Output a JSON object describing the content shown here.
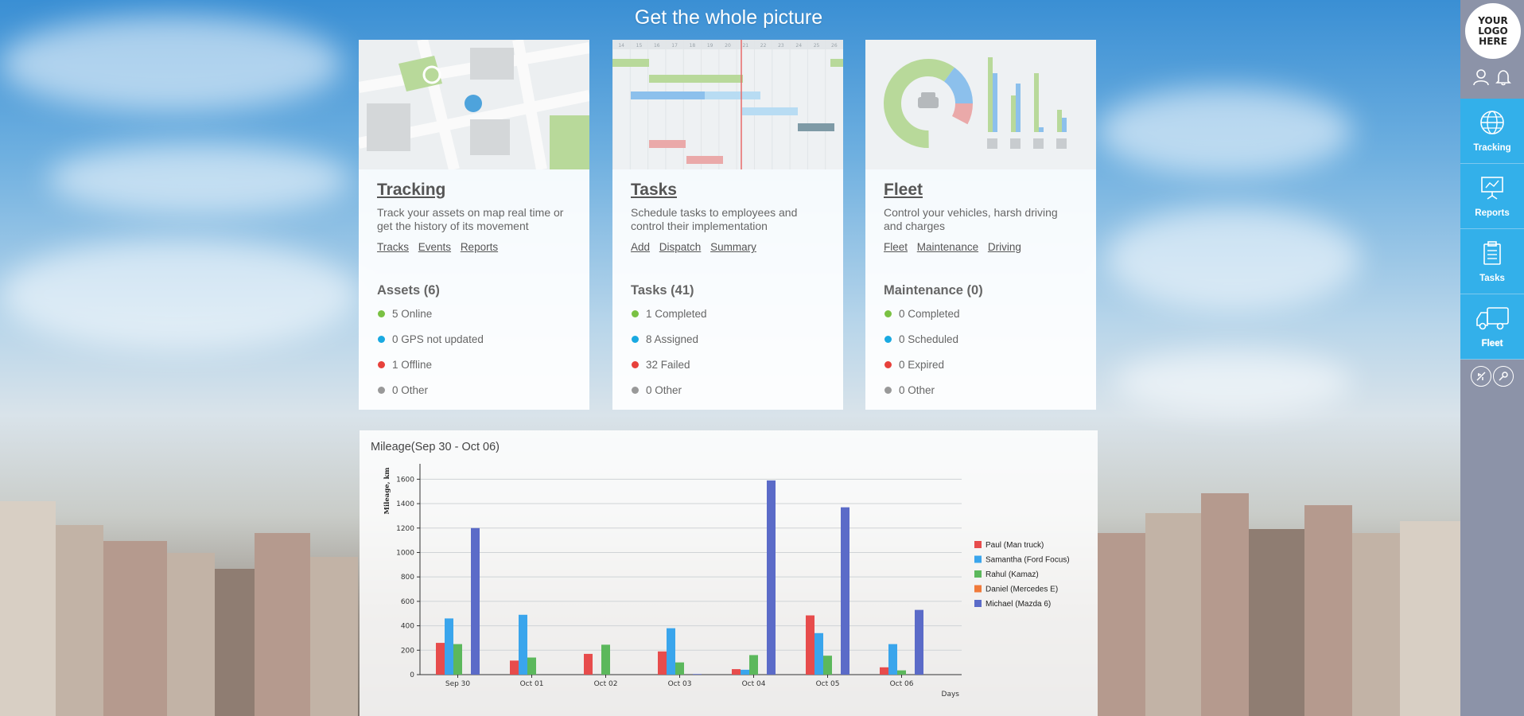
{
  "page_title": "Get the whole picture",
  "sidebar": {
    "logo_text": "YOUR LOGO HERE",
    "top_icons": [
      "user-icon",
      "bell-icon"
    ],
    "items": [
      {
        "label": "Tracking",
        "icon": "globe-icon"
      },
      {
        "label": "Reports",
        "icon": "presentation-icon"
      },
      {
        "label": "Tasks",
        "icon": "clipboard-icon"
      },
      {
        "label": "Fleet",
        "icon": "truck-icon"
      }
    ],
    "bottom_icons": [
      "plugin-icon",
      "key-icon"
    ]
  },
  "cards": [
    {
      "title": "Tracking",
      "description": "Track your assets on map real time or get the history of its movement",
      "links": [
        "Tracks",
        "Events",
        "Reports"
      ],
      "stats_title": "Assets (6)",
      "stats": [
        {
          "label": "5 Online",
          "color": "green"
        },
        {
          "label": "0 GPS not updated",
          "color": "blue"
        },
        {
          "label": "1 Offline",
          "color": "red"
        },
        {
          "label": "0 Other",
          "color": "gray"
        }
      ]
    },
    {
      "title": "Tasks",
      "description": "Schedule tasks to employees and control their implementation",
      "links": [
        "Add",
        "Dispatch",
        "Summary"
      ],
      "stats_title": "Tasks (41)",
      "stats": [
        {
          "label": "1 Completed",
          "color": "green"
        },
        {
          "label": "8 Assigned",
          "color": "blue"
        },
        {
          "label": "32 Failed",
          "color": "red"
        },
        {
          "label": "0 Other",
          "color": "gray"
        }
      ]
    },
    {
      "title": "Fleet",
      "description": "Control your vehicles, harsh driving and charges",
      "links": [
        "Fleet",
        "Maintenance",
        "Driving"
      ],
      "stats_title": "Maintenance (0)",
      "stats": [
        {
          "label": "0 Completed",
          "color": "green"
        },
        {
          "label": "0 Scheduled",
          "color": "blue"
        },
        {
          "label": "0 Expired",
          "color": "red"
        },
        {
          "label": "0 Other",
          "color": "gray"
        }
      ]
    }
  ],
  "gantt_days": [
    "14",
    "15",
    "16",
    "17",
    "18",
    "19",
    "20",
    "21",
    "22",
    "23",
    "24",
    "25",
    "26"
  ],
  "colors": {
    "accent": "#33b0ea",
    "sidebar": "#8c93a8",
    "green": "#7ac143",
    "blue": "#19a9e1",
    "red": "#e7413b"
  },
  "chart_data": {
    "type": "bar",
    "title": "Mileage(Sep 30 - Oct 06)",
    "xlabel": "Days",
    "ylabel": "Mileage, km",
    "ylim": [
      0,
      1700
    ],
    "yticks": [
      0,
      200,
      400,
      600,
      800,
      1000,
      1200,
      1400,
      1600
    ],
    "grid": true,
    "legend_position": "right",
    "categories": [
      "Sep 30",
      "Oct 01",
      "Oct 02",
      "Oct 03",
      "Oct 04",
      "Oct 05",
      "Oct 06"
    ],
    "series": [
      {
        "name": "Paul (Man truck)",
        "color": "#e74c4c",
        "values": [
          260,
          115,
          170,
          190,
          45,
          485,
          60
        ]
      },
      {
        "name": "Samantha (Ford Focus)",
        "color": "#3aa5ec",
        "values": [
          460,
          490,
          0,
          380,
          40,
          340,
          250
        ]
      },
      {
        "name": "Rahul (Kamaz)",
        "color": "#5cb85c",
        "values": [
          250,
          140,
          245,
          100,
          160,
          155,
          35
        ]
      },
      {
        "name": "Daniel (Mercedes E)",
        "color": "#f07a3a",
        "values": [
          0,
          0,
          0,
          0,
          0,
          0,
          0
        ]
      },
      {
        "name": "Michael (Mazda 6)",
        "color": "#5b6bc8",
        "values": [
          1200,
          0,
          0,
          5,
          1590,
          1370,
          530
        ]
      }
    ]
  }
}
